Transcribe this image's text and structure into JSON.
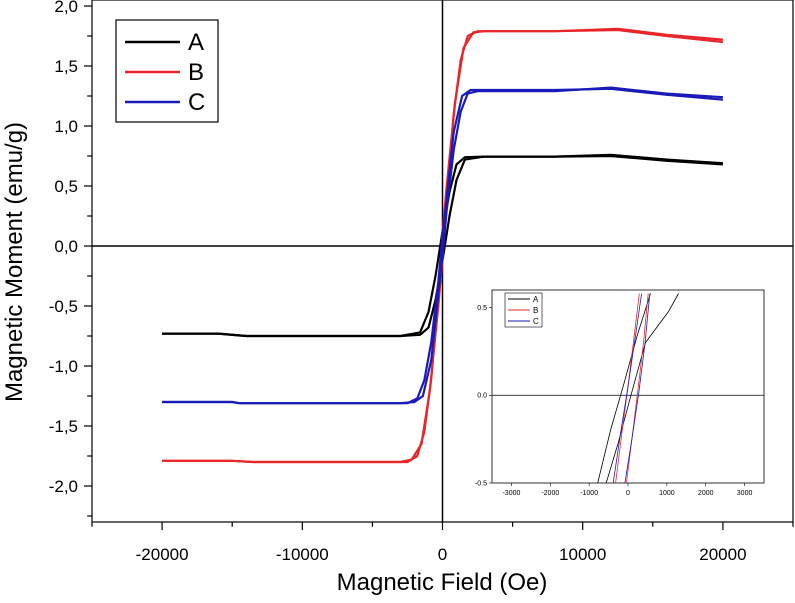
{
  "chart_data": [
    {
      "type": "line",
      "xlabel": "Magnetic Field (Oe)",
      "ylabel": "Magnetic Moment (emu/g)",
      "xlim": [
        -25000,
        25000
      ],
      "ylim": [
        -2.3,
        2.05
      ],
      "xticks": [
        -20000,
        -10000,
        0,
        10000,
        20000
      ],
      "xtick_labels": [
        "-20000",
        "-10000",
        "0",
        "10000",
        "20000"
      ],
      "yticks": [
        -2.0,
        -1.5,
        -1.0,
        -0.5,
        0.0,
        0.5,
        1.0,
        1.5,
        2.0
      ],
      "ytick_labels": [
        "-2,0",
        "-1,5",
        "-1,0",
        "-0,5",
        "0,0",
        "0,5",
        "1,0",
        "1,5",
        "2,0"
      ],
      "legend_position": "top-left",
      "grid": false,
      "series": [
        {
          "name": "A",
          "color": "#000000",
          "branches": [
            {
              "x": [
                -20000,
                -16000,
                -14000,
                -3000,
                -1600,
                -1000,
                -500,
                0,
                500,
                1000,
                1600,
                3000,
                8000,
                12000,
                16000,
                20000
              ],
              "y": [
                -0.73,
                -0.73,
                -0.75,
                -0.75,
                -0.74,
                -0.68,
                -0.45,
                -0.12,
                0.25,
                0.55,
                0.72,
                0.745,
                0.745,
                0.76,
                0.72,
                0.69
              ]
            },
            {
              "x": [
                -20000,
                -16000,
                -14000,
                -3000,
                -1600,
                -1000,
                -500,
                0,
                500,
                1000,
                1600,
                3000,
                8000,
                12000,
                16000,
                20000
              ],
              "y": [
                -0.73,
                -0.73,
                -0.75,
                -0.75,
                -0.72,
                -0.55,
                -0.25,
                0.12,
                0.45,
                0.68,
                0.74,
                0.745,
                0.745,
                0.75,
                0.71,
                0.68
              ]
            }
          ]
        },
        {
          "name": "B",
          "color": "#e8262a",
          "branches": [
            {
              "x": [
                -20000,
                -15000,
                -13500,
                -3000,
                -2200,
                -1500,
                -900,
                -300,
                0,
                300,
                800,
                1300,
                1800,
                2500,
                8000,
                12500,
                16000,
                20000
              ],
              "y": [
                -1.79,
                -1.79,
                -1.8,
                -1.8,
                -1.78,
                -1.65,
                -1.2,
                -0.5,
                -0.1,
                0.4,
                1.1,
                1.55,
                1.75,
                1.79,
                1.79,
                1.81,
                1.76,
                1.72
              ]
            },
            {
              "x": [
                -20000,
                -15000,
                -13500,
                -2500,
                -1800,
                -1300,
                -800,
                -300,
                0,
                300,
                900,
                1500,
                2200,
                3000,
                8000,
                12500,
                16000,
                20000
              ],
              "y": [
                -1.79,
                -1.79,
                -1.8,
                -1.8,
                -1.75,
                -1.55,
                -1.1,
                -0.4,
                0.1,
                0.5,
                1.2,
                1.65,
                1.78,
                1.79,
                1.79,
                1.8,
                1.75,
                1.7
              ]
            }
          ]
        },
        {
          "name": "C",
          "color": "#1a1ab8",
          "branches": [
            {
              "x": [
                -20000,
                -15000,
                -14500,
                -3000,
                -2000,
                -1400,
                -800,
                -300,
                0,
                300,
                800,
                1300,
                1800,
                2500,
                8000,
                12000,
                16000,
                20000
              ],
              "y": [
                -1.3,
                -1.3,
                -1.31,
                -1.31,
                -1.3,
                -1.25,
                -0.95,
                -0.4,
                -0.08,
                0.3,
                0.8,
                1.12,
                1.27,
                1.29,
                1.29,
                1.32,
                1.27,
                1.24
              ]
            },
            {
              "x": [
                -20000,
                -15000,
                -14500,
                -2500,
                -1800,
                -1300,
                -800,
                -300,
                0,
                300,
                800,
                1400,
                2000,
                3000,
                8000,
                12000,
                16000,
                20000
              ],
              "y": [
                -1.3,
                -1.3,
                -1.31,
                -1.31,
                -1.27,
                -1.12,
                -0.8,
                -0.3,
                0.08,
                0.4,
                0.95,
                1.25,
                1.3,
                1.3,
                1.3,
                1.31,
                1.26,
                1.22
              ]
            }
          ]
        }
      ]
    },
    {
      "type": "line",
      "inset": true,
      "xlim": [
        -3500,
        3500
      ],
      "ylim": [
        -0.5,
        0.6
      ],
      "xticks": [
        -3000,
        -2000,
        -1000,
        0,
        1000,
        2000,
        3000
      ],
      "xtick_labels": [
        "-3000",
        "-2000",
        "-1000",
        "0",
        "1000",
        "2000",
        "3000"
      ],
      "yticks": [
        -0.5,
        0.0,
        0.5
      ],
      "ytick_labels": [
        "-0.5",
        "0.0",
        "0.5"
      ],
      "legend_position": "top-left",
      "series": [
        {
          "name": "A",
          "color": "#000000",
          "branches": [
            {
              "x": [
                -780,
                -450,
                -100,
                250,
                580
              ],
              "y": [
                -0.5,
                -0.2,
                0.07,
                0.35,
                0.58
              ]
            },
            {
              "x": [
                -560,
                -250,
                100,
                450,
                1050,
                1300
              ],
              "y": [
                -0.5,
                -0.27,
                0.02,
                0.3,
                0.48,
                0.58
              ]
            }
          ]
        },
        {
          "name": "B",
          "color": "#e8262a",
          "branches": [
            {
              "x": [
                -320,
                -150,
                0,
                150,
                290
              ],
              "y": [
                -0.5,
                -0.2,
                0.05,
                0.32,
                0.58
              ]
            },
            {
              "x": [
                -40,
                100,
                250,
                400,
                520
              ],
              "y": [
                -0.5,
                -0.25,
                0.02,
                0.3,
                0.58
              ]
            }
          ]
        },
        {
          "name": "C",
          "color": "#1a1ab8",
          "branches": [
            {
              "x": [
                -380,
                -180,
                0,
                180,
                350
              ],
              "y": [
                -0.5,
                -0.2,
                0.05,
                0.32,
                0.58
              ]
            },
            {
              "x": [
                -80,
                100,
                280,
                440,
                560
              ],
              "y": [
                -0.5,
                -0.25,
                0.02,
                0.3,
                0.58
              ]
            }
          ]
        }
      ]
    }
  ]
}
